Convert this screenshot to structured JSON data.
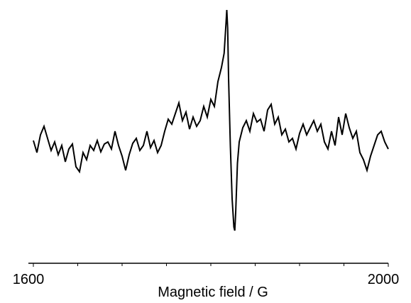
{
  "chart_data": {
    "type": "line",
    "xlabel": "Magnetic field / G",
    "x": [
      1600,
      1604,
      1608,
      1612,
      1616,
      1620,
      1624,
      1628,
      1632,
      1636,
      1640,
      1644,
      1648,
      1652,
      1656,
      1660,
      1664,
      1668,
      1672,
      1676,
      1680,
      1684,
      1688,
      1692,
      1696,
      1700,
      1704,
      1708,
      1712,
      1716,
      1720,
      1724,
      1728,
      1732,
      1736,
      1740,
      1744,
      1748,
      1752,
      1756,
      1760,
      1764,
      1768,
      1772,
      1776,
      1780,
      1784,
      1788,
      1792,
      1796,
      1800,
      1804,
      1808,
      1812,
      1815,
      1817,
      1818,
      1819,
      1820,
      1822,
      1824,
      1826,
      1827,
      1828,
      1830,
      1832,
      1836,
      1840,
      1844,
      1848,
      1852,
      1856,
      1860,
      1864,
      1868,
      1872,
      1876,
      1880,
      1884,
      1888,
      1892,
      1896,
      1900,
      1904,
      1908,
      1912,
      1916,
      1920,
      1924,
      1928,
      1932,
      1936,
      1940,
      1944,
      1948,
      1952,
      1956,
      1960,
      1964,
      1968,
      1972,
      1976,
      1980,
      1984,
      1988,
      1992,
      1996,
      2000
    ],
    "series": [
      {
        "color": "#000000",
        "values": [
          7,
          -10,
          15,
          27,
          10,
          -7,
          5,
          -13,
          0,
          -23,
          -5,
          2,
          -30,
          -37,
          -10,
          -20,
          0,
          -7,
          7,
          -9,
          2,
          5,
          -5,
          20,
          0,
          -15,
          -35,
          -13,
          3,
          10,
          -7,
          0,
          20,
          -3,
          7,
          -10,
          0,
          20,
          37,
          30,
          45,
          60,
          35,
          47,
          23,
          40,
          27,
          35,
          55,
          40,
          65,
          55,
          90,
          110,
          130,
          170,
          191,
          165,
          95,
          0,
          -75,
          -115,
          -120,
          -95,
          -25,
          5,
          25,
          35,
          20,
          45,
          33,
          37,
          20,
          50,
          58,
          30,
          40,
          15,
          23,
          5,
          10,
          -5,
          17,
          30,
          15,
          25,
          35,
          20,
          30,
          5,
          -5,
          20,
          0,
          40,
          15,
          45,
          25,
          10,
          20,
          -10,
          -20,
          -35,
          -15,
          0,
          15,
          20,
          5,
          -5
        ]
      }
    ],
    "xlim": [
      1600,
      2000
    ],
    "xticks": [
      1600,
      2000
    ],
    "xminor_ticks": [
      1650,
      1700,
      1750,
      1800,
      1850,
      1900,
      1950
    ],
    "ylim": [
      -140,
      200
    ]
  }
}
